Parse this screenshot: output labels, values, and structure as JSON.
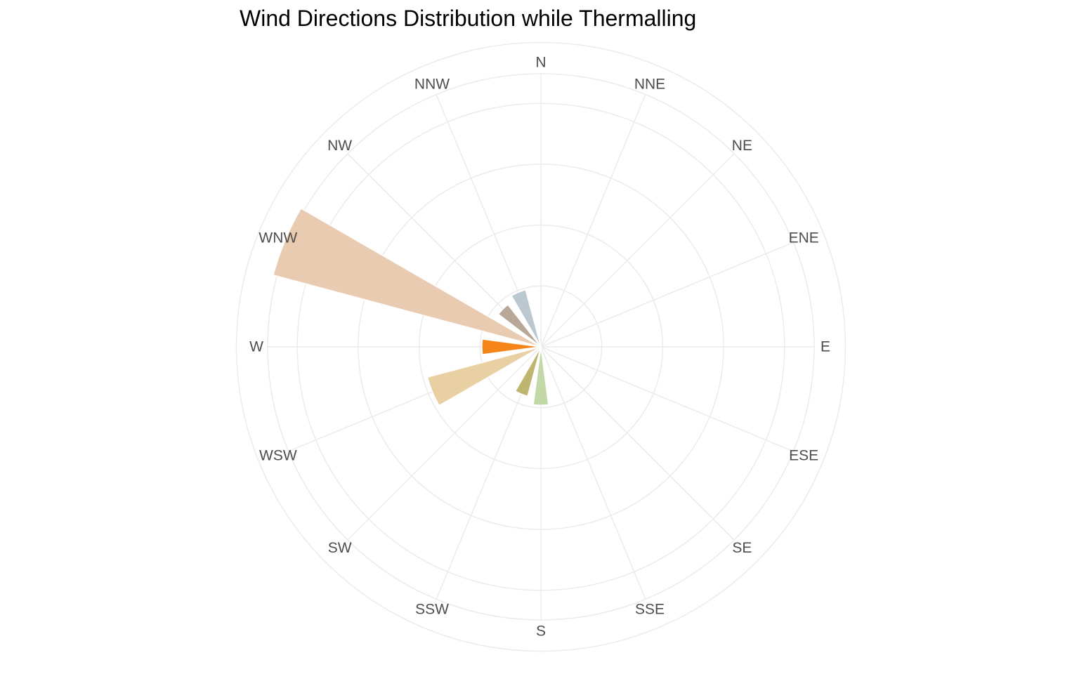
{
  "chart_data": {
    "type": "bar",
    "polar": true,
    "title": "Wind Directions Distribution while Thermalling",
    "categories": [
      "N",
      "NNE",
      "NE",
      "ENE",
      "E",
      "ESE",
      "SE",
      "SSE",
      "S",
      "SSW",
      "SW",
      "WSW",
      "W",
      "WNW",
      "NW",
      "NNW"
    ],
    "values": [
      0,
      0,
      0,
      0,
      0,
      0,
      0,
      0,
      0.96,
      0.84,
      0.0,
      1.93,
      0.97,
      4.55,
      0.0,
      0.0
    ],
    "extra_sectors": [
      {
        "start_deg": 330.0,
        "end_deg": 345.0,
        "value": 0.97,
        "color": "#bcc8d0"
      },
      {
        "start_deg": 307.5,
        "end_deg": 322.0,
        "value": 0.88,
        "color": "#b8a898"
      }
    ],
    "colors": [
      "#bcc8d0",
      "#bcc8d0",
      "#bcc8d0",
      "#bcc8d0",
      "#bcc8d0",
      "#bcc8d0",
      "#bcc8d0",
      "#bcc8d0",
      "#c2d8a6",
      "#bfb56e",
      "#bfb56e",
      "#e8d0a2",
      "#f58518",
      "#e8cbb0",
      "#b8a898",
      "#bcc8d0"
    ],
    "sector_width_deg": 15,
    "r_ticks": [
      1,
      2,
      3,
      4,
      5
    ],
    "grid": true,
    "legend": "none"
  }
}
